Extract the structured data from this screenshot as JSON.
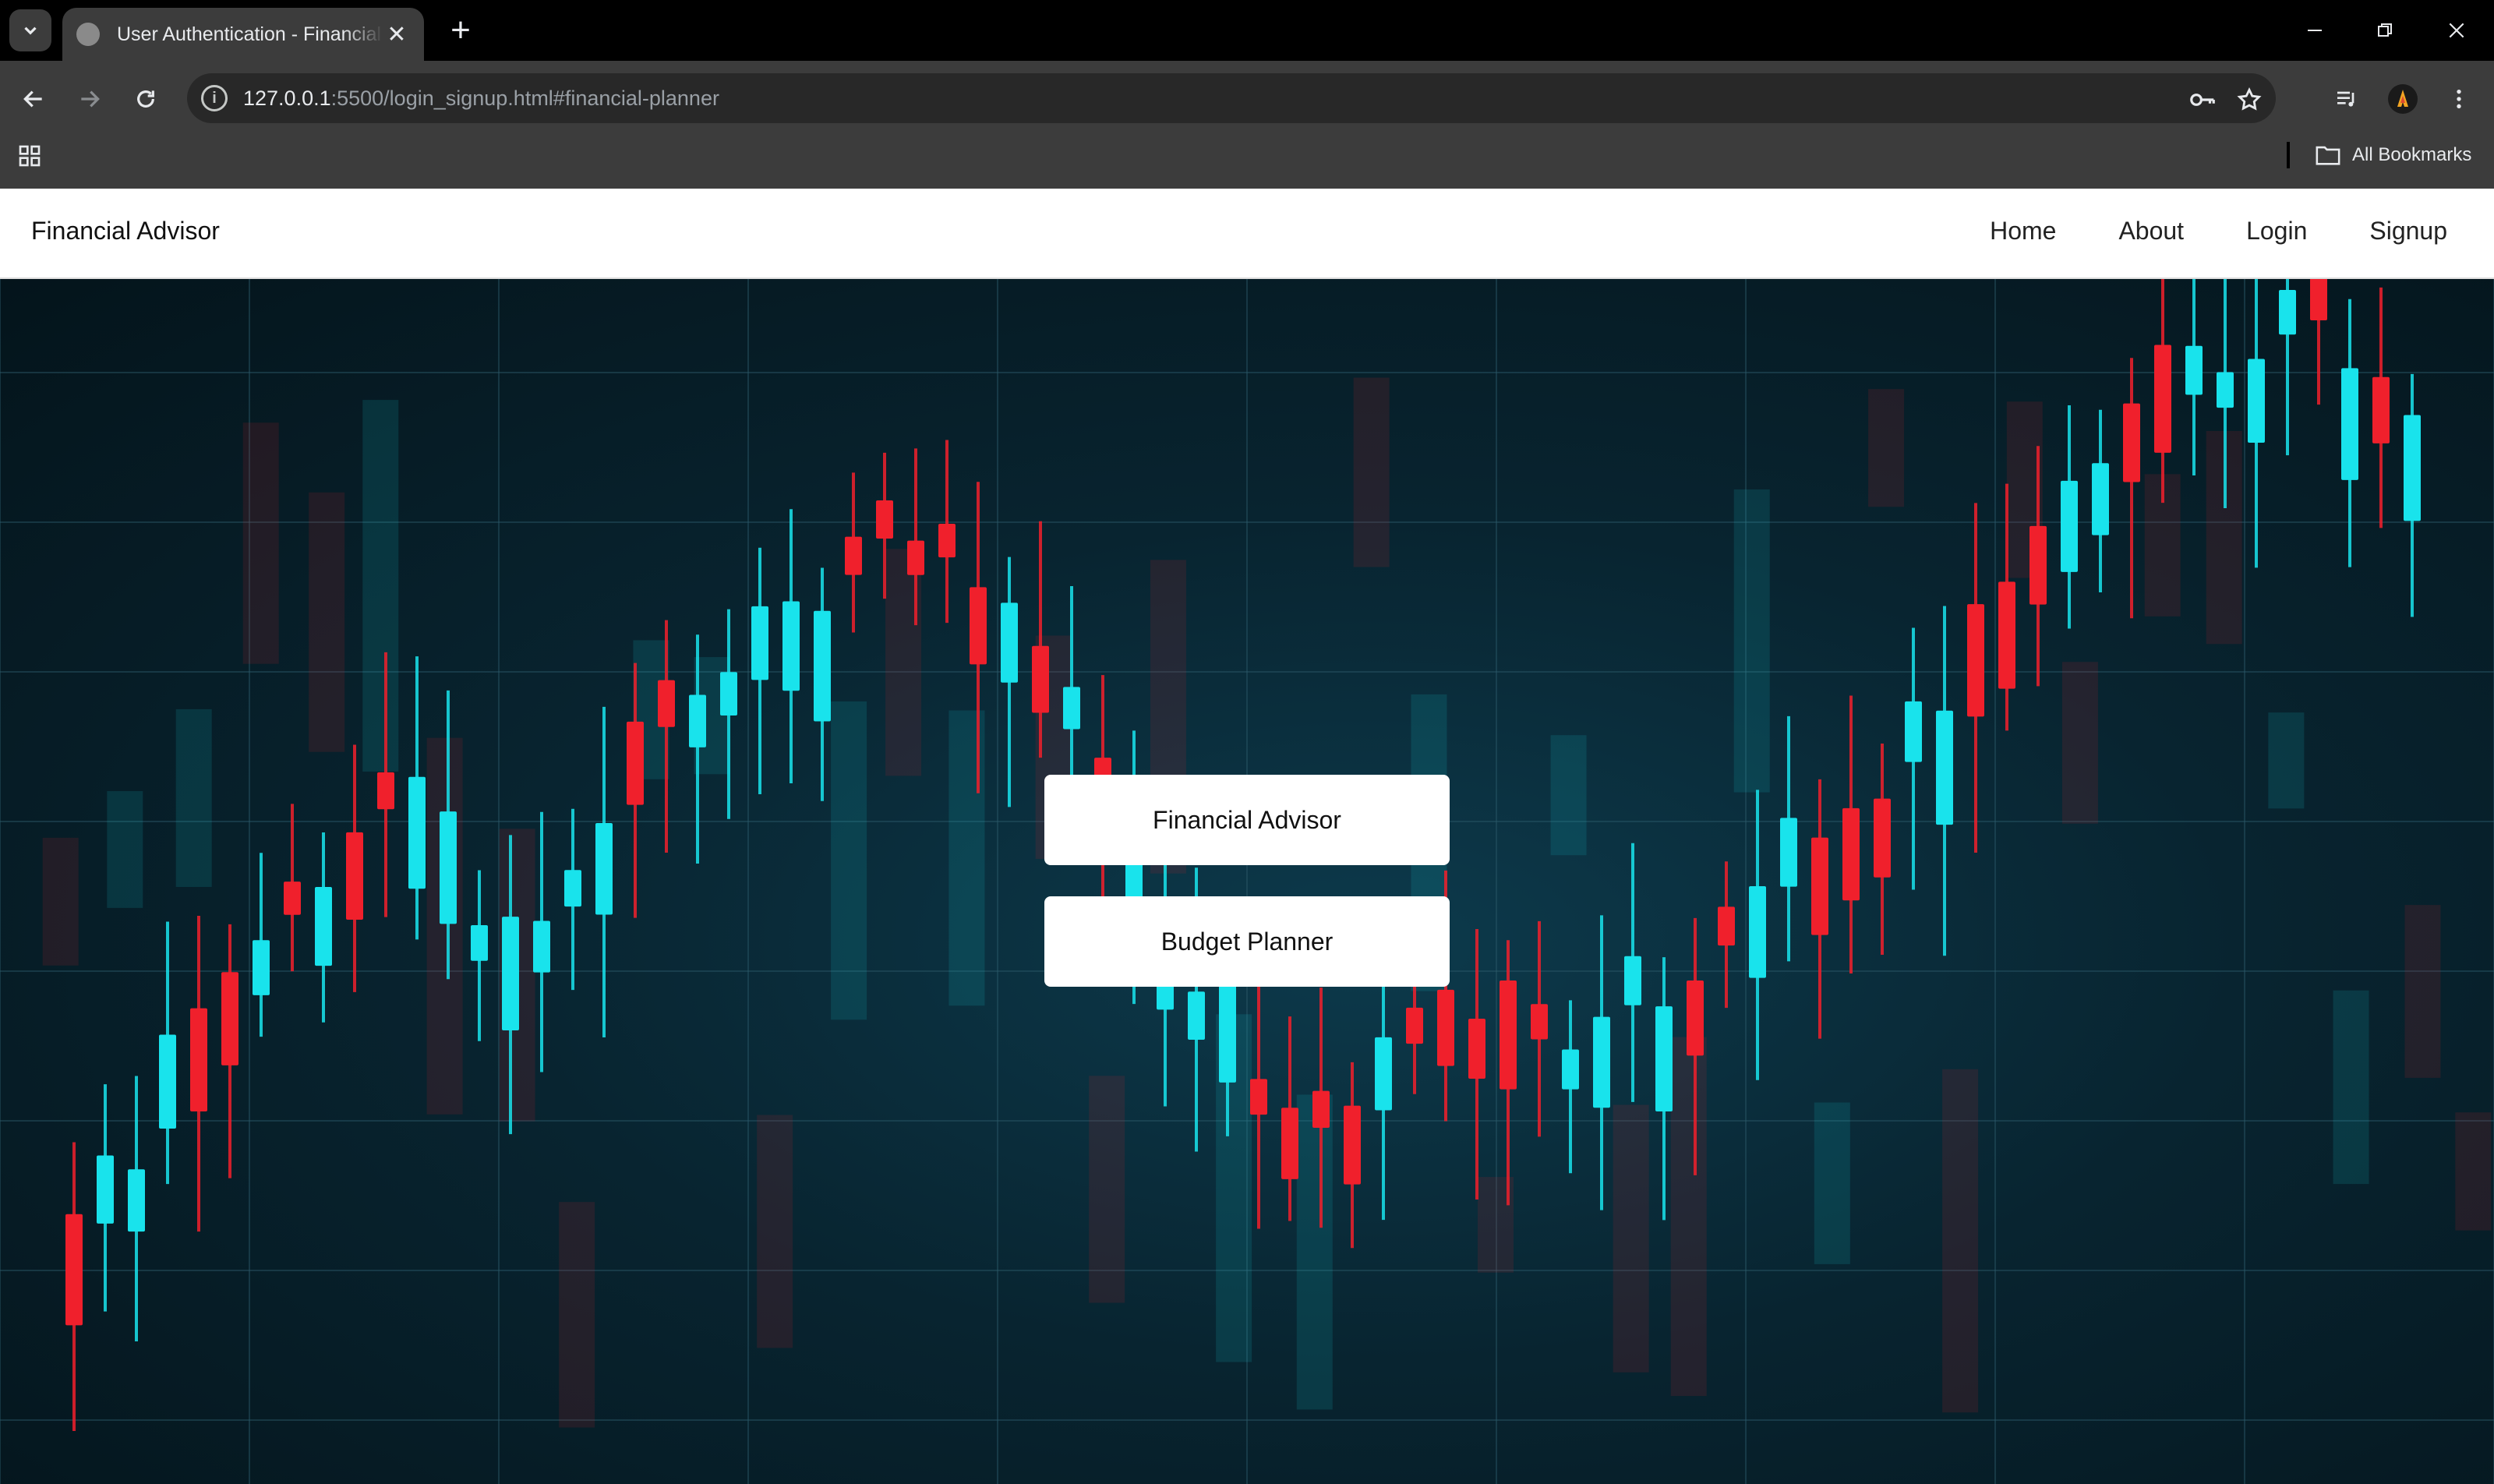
{
  "browser": {
    "tab_title": "User Authentication - Financial Advisor",
    "url_host": "127.0.0.1",
    "url_rest": ":5500/login_signup.html#financial-planner",
    "bookmarks_label": "All Bookmarks"
  },
  "site": {
    "brand": "Financial Advisor",
    "nav": [
      "Home",
      "About",
      "Login",
      "Signup"
    ]
  },
  "actions": {
    "financial_advisor": "Financial Advisor",
    "budget_planner": "Budget Planner"
  },
  "colors": {
    "bull": "#19e3ec",
    "bear": "#f0202c",
    "grid": "#2c5a6a"
  },
  "icons": {
    "tab_search": "chevron-down-icon",
    "favicon": "globe-icon",
    "close": "close-icon",
    "new_tab": "plus-icon",
    "back": "arrow-left-icon",
    "forward": "arrow-right-icon",
    "reload": "reload-icon",
    "site_info": "info-icon",
    "password": "key-icon",
    "bookmark": "star-icon",
    "media": "playlist-icon",
    "profile": "avatar",
    "menu": "kebab-icon",
    "apps": "grid-icon",
    "folder": "folder-icon"
  }
}
